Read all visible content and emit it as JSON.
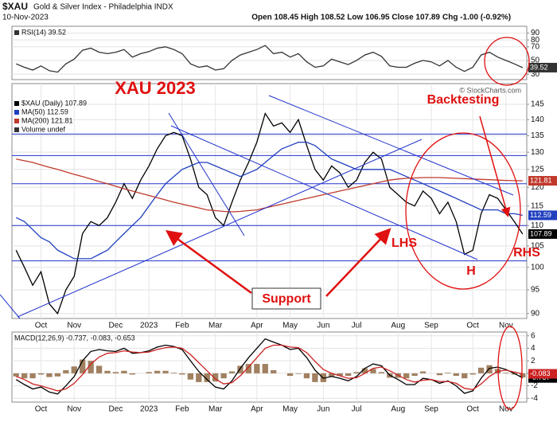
{
  "header": {
    "symbol": "$XAU",
    "name": "Gold & Silver Index - Philadelphia INDX",
    "date": "10-Nov-2023",
    "ohlc": "Open 108.45 High 108.52 Low 106.95 Close 107.89",
    "change": "Chg -1.00 (-0.92%)",
    "source": "© StockCharts.com"
  },
  "chart_data": [
    {
      "type": "line",
      "ylim": [
        22,
        100
      ],
      "yticks": [
        30,
        50,
        70,
        80,
        90
      ],
      "grid": true,
      "series": [
        {
          "name": "RSI(14) 39.52",
          "color": "#333333",
          "end_label": "39.52",
          "values": [
            45,
            40,
            36,
            42,
            35,
            33,
            45,
            52,
            65,
            68,
            62,
            60,
            62,
            66,
            55,
            60,
            63,
            68,
            70,
            66,
            60,
            45,
            40,
            42,
            36,
            38,
            50,
            58,
            62,
            66,
            72,
            60,
            62,
            55,
            60,
            48,
            40,
            42,
            52,
            48,
            44,
            50,
            58,
            62,
            56,
            42,
            40,
            40,
            46,
            50,
            48,
            42,
            50,
            40,
            34,
            40,
            58,
            62,
            55,
            50,
            45,
            39.52
          ]
        }
      ]
    },
    {
      "type": "line",
      "log": true,
      "ylim": [
        89,
        152
      ],
      "yticks": [
        90,
        95,
        100,
        105,
        110,
        115,
        120,
        125,
        130,
        135,
        140,
        145
      ],
      "grid": true,
      "categories": [
        null,
        null,
        null,
        "Oct",
        null,
        null,
        null,
        "Nov",
        null,
        null,
        null,
        null,
        "Dec",
        null,
        null,
        null,
        "2023",
        null,
        null,
        null,
        "Feb",
        null,
        null,
        null,
        "Mar",
        null,
        null,
        null,
        null,
        "Apr",
        null,
        null,
        null,
        "May",
        null,
        null,
        null,
        "Jun",
        null,
        null,
        null,
        "Jul",
        null,
        null,
        null,
        null,
        "Aug",
        null,
        null,
        null,
        "Sep",
        null,
        null,
        null,
        null,
        "Oct",
        null,
        null,
        null,
        "Nov",
        null,
        null
      ],
      "hlines": [
        101.5,
        110,
        121,
        129,
        135.5
      ],
      "hline_color": "#2233cc",
      "legend_notes": [
        "Volume undef"
      ],
      "annotations": [
        "XAU 2023",
        "Backtesting",
        "Support",
        "LHS",
        "H",
        "RHS"
      ],
      "series": [
        {
          "name": "$XAU (Daily) 107.89",
          "color": "#000000",
          "end_label": "107.89",
          "values": [
            104,
            100,
            96,
            99,
            92,
            90,
            95,
            98,
            108,
            111,
            110,
            112,
            116,
            121,
            117,
            122,
            126,
            131,
            135,
            136,
            135,
            128,
            120,
            118,
            112,
            110,
            116,
            122,
            127,
            133,
            142,
            138,
            139,
            136,
            140,
            132,
            125,
            122,
            126,
            124,
            120,
            122,
            127,
            130,
            128,
            120,
            118,
            116,
            115,
            119,
            117,
            113,
            116,
            111,
            103,
            104,
            113,
            118,
            117,
            114,
            111,
            107.89
          ]
        },
        {
          "name": "MA(50) 112.59",
          "color": "#1f3fbf",
          "end_label": "112.59",
          "values": [
            112,
            111,
            109,
            107,
            106,
            104,
            103,
            102,
            102,
            102,
            103,
            104,
            106,
            108,
            110,
            112,
            115,
            118,
            121,
            123,
            125,
            126,
            127,
            127,
            126,
            125,
            124,
            123,
            124,
            125,
            127,
            129,
            131,
            132,
            133,
            133,
            132,
            130,
            128,
            127,
            126,
            125,
            125,
            125,
            125,
            125,
            124,
            123,
            122,
            121,
            120,
            119,
            118,
            117,
            116,
            115,
            114,
            114,
            114,
            113,
            113,
            112.59
          ]
        },
        {
          "name": "MA(200) 121.81",
          "color": "#c0392b",
          "end_label": "121.81",
          "values": [
            128,
            127.5,
            127,
            126.3,
            125.6,
            125,
            124.3,
            123.6,
            123,
            122.3,
            121.6,
            121,
            120.3,
            119.6,
            119,
            118.4,
            117.8,
            117.2,
            116.6,
            116,
            115.5,
            115,
            114.5,
            114,
            113.8,
            113.6,
            113.5,
            113.6,
            113.8,
            114,
            114.5,
            115,
            115.5,
            116,
            116.5,
            117,
            117.5,
            118,
            118.5,
            119,
            119.5,
            120,
            120.5,
            121,
            121.5,
            122,
            122.3,
            122.5,
            122.6,
            122.7,
            122.7,
            122.7,
            122.6,
            122.5,
            122.4,
            122.3,
            122.2,
            122.1,
            122,
            121.9,
            121.85,
            121.81
          ]
        }
      ]
    },
    {
      "type": "line",
      "title": "MACD(12,26,9) -0.737, -0.083, -0.653",
      "ylim": [
        -4.6,
        6.6
      ],
      "yticks": [
        -4,
        -2,
        0,
        2,
        4,
        6
      ],
      "grid": true,
      "categories": [
        null,
        null,
        null,
        "Oct",
        null,
        null,
        null,
        "Nov",
        null,
        null,
        null,
        null,
        "Dec",
        null,
        null,
        null,
        "2023",
        null,
        null,
        null,
        "Feb",
        null,
        null,
        null,
        "Mar",
        null,
        null,
        null,
        null,
        "Apr",
        null,
        null,
        null,
        "May",
        null,
        null,
        null,
        "Jun",
        null,
        null,
        null,
        "Jul",
        null,
        null,
        null,
        null,
        "Aug",
        null,
        null,
        null,
        "Sep",
        null,
        null,
        null,
        null,
        "Oct",
        null,
        null,
        null,
        "Nov",
        null,
        null
      ],
      "series": [
        {
          "style": "bar",
          "color": "#a08060",
          "values": [
            -0.5,
            -0.8,
            -0.8,
            -0.2,
            -0.6,
            -0.5,
            0.5,
            1.1,
            2.2,
            2.0,
            1.2,
            0.4,
            0.2,
            0.4,
            -0.2,
            0.0,
            0.2,
            0.4,
            0.4,
            0.1,
            -0.2,
            -1.0,
            -1.4,
            -1.4,
            -1.3,
            -0.8,
            0.3,
            1.2,
            1.5,
            1.5,
            1.5,
            0.5,
            0.0,
            -0.4,
            -0.1,
            -0.8,
            -1.4,
            -1.4,
            -0.5,
            -0.4,
            -0.4,
            0.2,
            0.8,
            0.7,
            0.2,
            -0.7,
            -0.7,
            -0.8,
            -0.4,
            0.3,
            0.0,
            -0.3,
            0.1,
            -0.4,
            -0.8,
            -0.2,
            0.9,
            1.3,
            0.7,
            0.1,
            -0.2,
            -0.653
          ]
        },
        {
          "color": "#000000",
          "end_label": "-0.737",
          "values": [
            -1.0,
            -1.8,
            -2.5,
            -2.2,
            -3.0,
            -3.3,
            -2.0,
            -0.5,
            2.0,
            3.5,
            3.8,
            3.6,
            3.5,
            4.0,
            3.2,
            3.3,
            3.6,
            4.2,
            4.5,
            4.3,
            3.8,
            2.0,
            0.3,
            -1.0,
            -2.2,
            -2.5,
            -1.2,
            0.8,
            2.5,
            4.0,
            5.5,
            5.0,
            4.5,
            3.8,
            4.0,
            2.5,
            0.5,
            -0.8,
            -0.5,
            -0.8,
            -1.2,
            -0.5,
            0.8,
            1.5,
            1.2,
            -0.3,
            -1.0,
            -1.8,
            -1.8,
            -0.8,
            -1.0,
            -1.6,
            -1.2,
            -2.0,
            -3.2,
            -2.8,
            -0.8,
            0.8,
            1.0,
            0.6,
            0.0,
            -0.737
          ]
        },
        {
          "color": "#cc2222",
          "end_label": "-0.083",
          "values": [
            -0.5,
            -1.0,
            -1.7,
            -2.0,
            -2.4,
            -2.8,
            -2.5,
            -1.6,
            -0.2,
            1.5,
            2.6,
            3.2,
            3.3,
            3.6,
            3.4,
            3.3,
            3.4,
            3.8,
            4.1,
            4.2,
            4.0,
            3.0,
            1.7,
            0.4,
            -0.9,
            -1.7,
            -1.5,
            -0.4,
            1.0,
            2.5,
            4.0,
            4.5,
            4.5,
            4.2,
            4.1,
            3.3,
            1.9,
            0.6,
            0.0,
            -0.4,
            -0.8,
            -0.7,
            0.0,
            0.8,
            1.0,
            0.4,
            -0.3,
            -1.0,
            -1.4,
            -1.1,
            -1.0,
            -1.3,
            -1.3,
            -1.6,
            -2.4,
            -2.6,
            -1.7,
            -0.5,
            0.3,
            0.5,
            0.2,
            -0.083
          ]
        }
      ]
    }
  ]
}
